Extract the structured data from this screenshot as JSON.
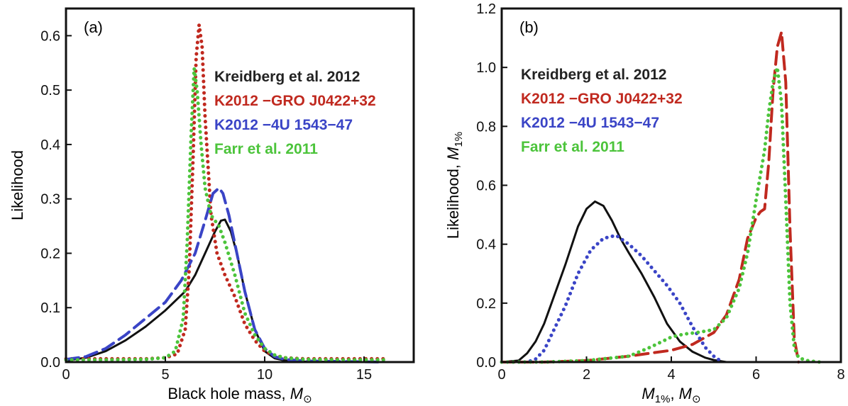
{
  "chart_data": [
    {
      "type": "line",
      "panel_label": "(a)",
      "xlabel": "Black hole mass, ",
      "xlabel_symbol": "M",
      "xlabel_sub": "⊙",
      "ylabel": "Likelihood",
      "xlim": [
        0,
        17.5
      ],
      "ylim": [
        0,
        0.65
      ],
      "xticks": [
        0,
        5,
        10,
        15
      ],
      "xtick_labels": [
        "0",
        "5",
        "10",
        "15"
      ],
      "yticks": [
        0,
        0.1,
        0.2,
        0.3,
        0.4,
        0.5,
        0.6
      ],
      "ytick_labels": [
        "0.0",
        "0.1",
        "0.2",
        "0.3",
        "0.4",
        "0.5",
        "0.6"
      ],
      "legend": [
        {
          "label": "Kreidberg et al. 2012",
          "color": "#222222"
        },
        {
          "label": "K2012   −GRO J0422+32",
          "color": "#c0291f"
        },
        {
          "label": "K2012   −4U 1543−47",
          "color": "#3a44c6"
        },
        {
          "label": "Farr et al. 2011",
          "color": "#4cc43b"
        }
      ],
      "series": [
        {
          "name": "Kreidberg et al. 2012",
          "color": "#111111",
          "style": "solid",
          "x": [
            0,
            1,
            2,
            3,
            4,
            5,
            6,
            6.5,
            7,
            7.5,
            7.8,
            8,
            8.3,
            8.6,
            9,
            9.5,
            10,
            10.5,
            11,
            12,
            14,
            16
          ],
          "y": [
            0.003,
            0.008,
            0.02,
            0.04,
            0.065,
            0.095,
            0.13,
            0.16,
            0.2,
            0.24,
            0.26,
            0.262,
            0.24,
            0.2,
            0.13,
            0.06,
            0.02,
            0.007,
            0.003,
            0.001,
            0.0,
            0.0
          ]
        },
        {
          "name": "K2012   −GRO J0422+32",
          "color": "#c0291f",
          "style": "dotted",
          "x": [
            0,
            2,
            4,
            5,
            5.6,
            6,
            6.2,
            6.4,
            6.55,
            6.7,
            6.85,
            7,
            7.3,
            7.6,
            8,
            8.5,
            9,
            9.5,
            10,
            10.5,
            11,
            12,
            14,
            16
          ],
          "y": [
            0.006,
            0.006,
            0.006,
            0.008,
            0.015,
            0.06,
            0.17,
            0.38,
            0.56,
            0.62,
            0.58,
            0.45,
            0.27,
            0.2,
            0.16,
            0.12,
            0.07,
            0.04,
            0.02,
            0.012,
            0.008,
            0.006,
            0.006,
            0.006
          ]
        },
        {
          "name": "K2012   −4U 1543−47",
          "color": "#3a44c6",
          "style": "dashed",
          "x": [
            0,
            1,
            2,
            3,
            4,
            5,
            5.8,
            6.5,
            7,
            7.4,
            7.7,
            7.9,
            8.2,
            8.6,
            9,
            9.5,
            10,
            10.5,
            11,
            12,
            14,
            16
          ],
          "y": [
            0.005,
            0.01,
            0.025,
            0.05,
            0.08,
            0.11,
            0.15,
            0.2,
            0.26,
            0.31,
            0.32,
            0.31,
            0.27,
            0.2,
            0.13,
            0.06,
            0.025,
            0.01,
            0.005,
            0.002,
            0.001,
            0.0
          ]
        },
        {
          "name": "Farr et al. 2011",
          "color": "#4cc43b",
          "style": "dotted",
          "x": [
            0,
            2,
            4,
            5,
            5.5,
            5.9,
            6.1,
            6.3,
            6.45,
            6.6,
            6.8,
            7,
            7.3,
            7.7,
            8,
            8.5,
            9,
            9.5,
            10,
            10.5,
            11,
            12,
            14,
            16
          ],
          "y": [
            0.004,
            0.004,
            0.005,
            0.008,
            0.02,
            0.08,
            0.22,
            0.42,
            0.54,
            0.5,
            0.4,
            0.32,
            0.27,
            0.25,
            0.22,
            0.16,
            0.09,
            0.05,
            0.025,
            0.013,
            0.008,
            0.005,
            0.004,
            0.004
          ]
        }
      ]
    },
    {
      "type": "line",
      "panel_label": "(b)",
      "xlabel": ", ",
      "xlabel_symbol": "M",
      "xlabel_sub": "1%",
      "xlabel_unit_symbol": "M",
      "xlabel_unit_sub": "⊙",
      "ylabel": "Likelihood, ",
      "ylabel_symbol": "M",
      "ylabel_sub": "1%",
      "xlim": [
        0,
        8
      ],
      "ylim": [
        0,
        1.2
      ],
      "xticks": [
        0,
        2,
        4,
        6,
        8
      ],
      "xtick_labels": [
        "0",
        "2",
        "4",
        "6",
        "8"
      ],
      "yticks": [
        0,
        0.2,
        0.4,
        0.6,
        0.8,
        1.0,
        1.2
      ],
      "ytick_labels": [
        "0.0",
        "0.2",
        "0.4",
        "0.6",
        "0.8",
        "1.0",
        "1.2"
      ],
      "legend": [
        {
          "label": "Kreidberg et al. 2012",
          "color": "#222222"
        },
        {
          "label": "K2012   −GRO J0422+32",
          "color": "#c0291f"
        },
        {
          "label": "K2012   −4U 1543−47",
          "color": "#3a44c6"
        },
        {
          "label": "Farr et al. 2011",
          "color": "#4cc43b"
        }
      ],
      "series": [
        {
          "name": "Kreidberg et al. 2012",
          "color": "#111111",
          "style": "solid",
          "x": [
            0,
            0.4,
            0.6,
            0.8,
            1,
            1.2,
            1.5,
            1.8,
            2,
            2.2,
            2.4,
            2.6,
            2.8,
            3,
            3.3,
            3.6,
            3.9,
            4.2,
            4.5,
            4.8,
            5,
            5.3
          ],
          "y": [
            0,
            0.005,
            0.03,
            0.07,
            0.13,
            0.21,
            0.33,
            0.46,
            0.52,
            0.545,
            0.53,
            0.48,
            0.42,
            0.37,
            0.3,
            0.22,
            0.13,
            0.07,
            0.035,
            0.015,
            0.007,
            0.0
          ]
        },
        {
          "name": "K2012   −GRO J0422+32",
          "color": "#c0291f",
          "style": "dashed",
          "x": [
            0,
            1,
            2,
            3,
            3.5,
            4,
            4.5,
            5,
            5.3,
            5.6,
            5.8,
            6,
            6.1,
            6.2,
            6.3,
            6.4,
            6.5,
            6.6,
            6.7,
            6.8,
            6.9,
            7
          ],
          "y": [
            0,
            0,
            0.005,
            0.02,
            0.03,
            0.04,
            0.06,
            0.1,
            0.16,
            0.28,
            0.42,
            0.49,
            0.51,
            0.52,
            0.68,
            0.92,
            1.07,
            1.12,
            0.95,
            0.45,
            0.08,
            0.0
          ]
        },
        {
          "name": "K2012   −4U 1543−47",
          "color": "#3a44c6",
          "style": "dotted",
          "x": [
            0,
            0.6,
            0.8,
            1,
            1.2,
            1.5,
            1.8,
            2.1,
            2.4,
            2.7,
            3,
            3.3,
            3.6,
            3.9,
            4.2,
            4.5,
            4.8,
            5,
            5.2
          ],
          "y": [
            0,
            0,
            0.01,
            0.04,
            0.1,
            0.19,
            0.3,
            0.38,
            0.42,
            0.43,
            0.4,
            0.36,
            0.31,
            0.26,
            0.2,
            0.12,
            0.05,
            0.02,
            0.0
          ]
        },
        {
          "name": "Farr et al. 2011",
          "color": "#4cc43b",
          "style": "dotted",
          "x": [
            0,
            1,
            2,
            3,
            3.5,
            4,
            4.3,
            4.6,
            5,
            5.3,
            5.6,
            5.8,
            6,
            6.2,
            6.3,
            6.4,
            6.5,
            6.6,
            6.7,
            6.8,
            6.9,
            7,
            7.2,
            7.5
          ],
          "y": [
            0,
            0,
            0.005,
            0.02,
            0.05,
            0.085,
            0.095,
            0.1,
            0.11,
            0.15,
            0.25,
            0.37,
            0.55,
            0.72,
            0.85,
            0.95,
            1.0,
            0.88,
            0.55,
            0.2,
            0.05,
            0.015,
            0.005,
            0.0
          ]
        }
      ]
    }
  ]
}
